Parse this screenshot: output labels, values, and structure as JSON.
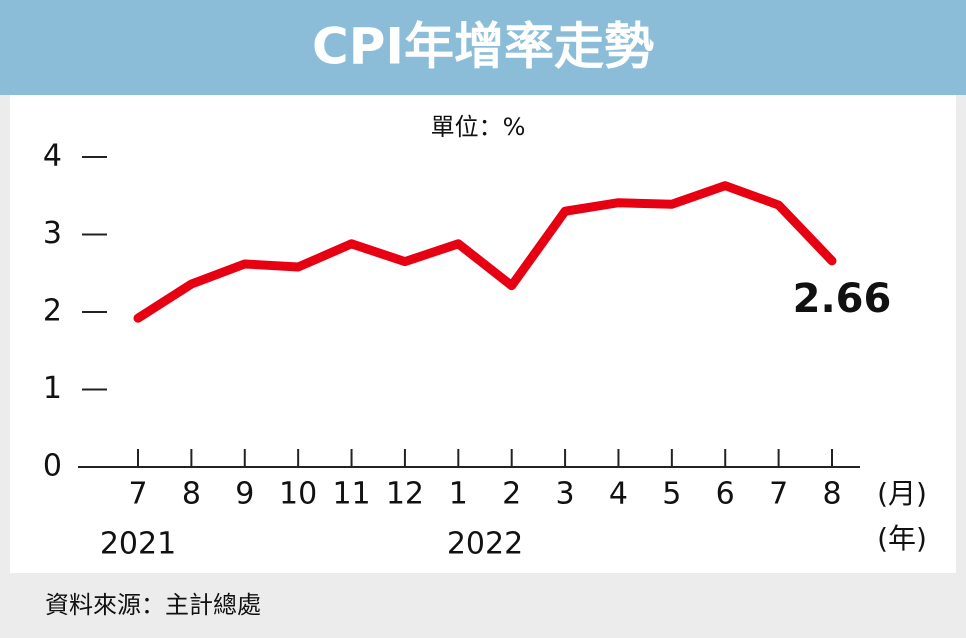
{
  "chart_data": {
    "type": "line",
    "title": "CPI年增率走勢",
    "unit": "單位：%",
    "categories": [
      "7",
      "8",
      "9",
      "10",
      "11",
      "12",
      "1",
      "2",
      "3",
      "4",
      "5",
      "6",
      "7",
      "8"
    ],
    "x_unit": "(月)",
    "year_unit": "(年)",
    "years": [
      "2021",
      "2022"
    ],
    "series": [
      {
        "name": "CPI年增率",
        "color": "#e60012",
        "values": [
          1.92,
          2.36,
          2.62,
          2.58,
          2.88,
          2.65,
          2.88,
          2.34,
          3.3,
          3.41,
          3.39,
          3.63,
          3.38,
          2.66
        ]
      }
    ],
    "ylim": [
      0,
      4
    ],
    "yticks": [
      0,
      1,
      2,
      3,
      4
    ],
    "source": "資料來源：主計總處"
  }
}
